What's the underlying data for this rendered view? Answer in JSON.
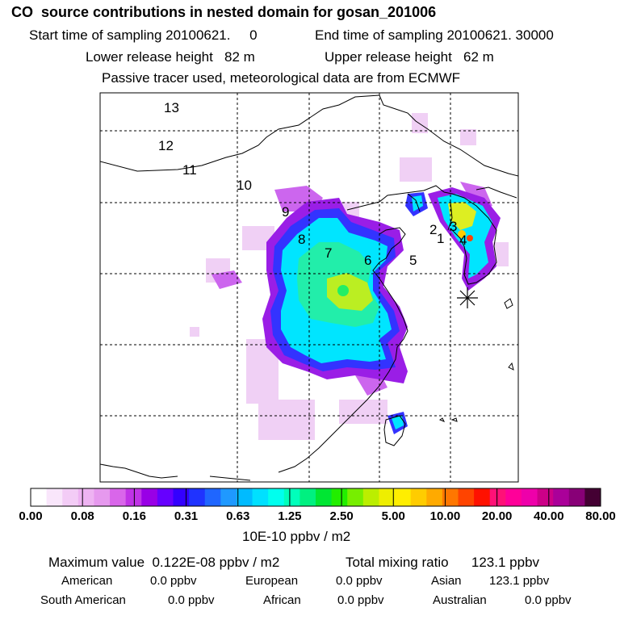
{
  "header": {
    "title": "CO  source contributions in nested domain for gosan_201006",
    "start_label": "Start time of sampling 20100621.     0",
    "end_label": "End time of sampling 20100621. 30000",
    "lower_label": "Lower release height   82 m",
    "upper_label": "Upper release height   62 m",
    "note": "Passive tracer used, meteorological data are from ECMWF"
  },
  "map": {
    "region_labels": [
      "13",
      "12",
      "11",
      "10",
      "9",
      "8",
      "7",
      "6",
      "5",
      "4",
      "3",
      "2",
      "1"
    ],
    "receptor_marker": "asterisk",
    "plume_colors": {
      "faint": "#f0d0f5",
      "light": "#cc66ee",
      "mid": "#3333ff",
      "cyan": "#00e5ff",
      "green": "#22ee88",
      "yellow": "#ddee22"
    }
  },
  "colorbar": {
    "colors": [
      "#ffffff",
      "#f9e6fb",
      "#f3ccf6",
      "#eeb3f2",
      "#e699ee",
      "#d966ea",
      "#c033e6",
      "#9900e6",
      "#6600ff",
      "#3300ff",
      "#1f33ff",
      "#1f66ff",
      "#1f99ff",
      "#00bbff",
      "#00e0ff",
      "#00ffee",
      "#00ffbb",
      "#00f080",
      "#00e633",
      "#22ee00",
      "#77ee00",
      "#bbee00",
      "#eeee00",
      "#ffee00",
      "#ffcc00",
      "#ffaa00",
      "#ff7700",
      "#ff4400",
      "#ff1100",
      "#ff1177",
      "#ff0099",
      "#ee00aa",
      "#cc0088",
      "#aa0099",
      "#880077",
      "#440033"
    ],
    "tick_labels": [
      "0.00",
      "0.08",
      "0.16",
      "0.31",
      "0.63",
      "1.25",
      "2.50",
      "5.00",
      "10.00",
      "20.00",
      "40.00",
      "80.00"
    ],
    "units": "10E-10 ppbv / m2"
  },
  "footer": {
    "max_label": "Maximum value  0.122E-08 ppbv / m2",
    "total_label": "Total mixing ratio      123.1 ppbv",
    "sources": [
      {
        "name": "American",
        "value": "0.0 ppbv"
      },
      {
        "name": "European",
        "value": "0.0 ppbv"
      },
      {
        "name": "Asian",
        "value": "123.1 ppbv"
      },
      {
        "name": "South American",
        "value": "0.0 ppbv"
      },
      {
        "name": "African",
        "value": "0.0 ppbv"
      },
      {
        "name": "Australian",
        "value": "0.0 ppbv"
      }
    ]
  }
}
